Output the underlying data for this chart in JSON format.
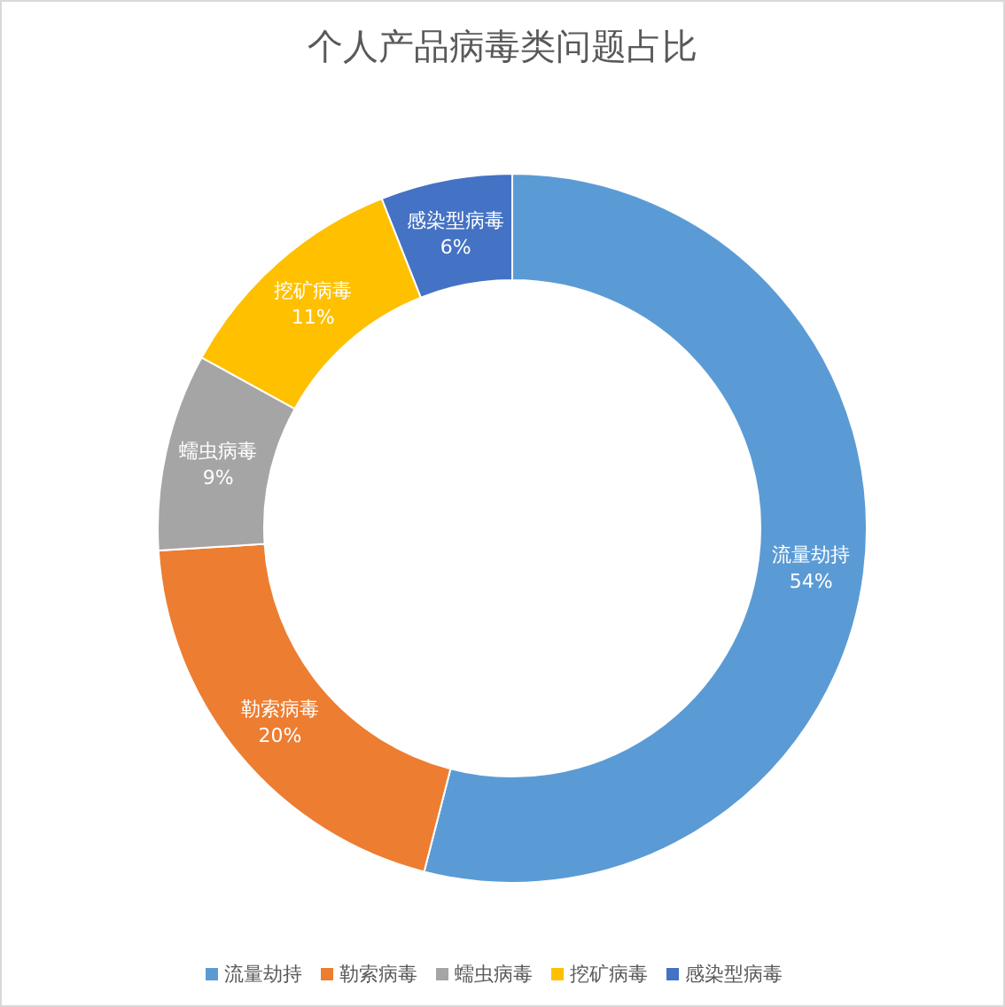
{
  "chart_data": {
    "type": "donut",
    "title": "个人产品病毒类问题占比",
    "categories": [
      "流量劫持",
      "勒索病毒",
      "蠕虫病毒",
      "挖矿病毒",
      "感染型病毒"
    ],
    "values": [
      54,
      20,
      9,
      11,
      6
    ],
    "value_labels": [
      "54%",
      "20%",
      "9%",
      "11%",
      "6%"
    ],
    "colors": [
      "#5b9bd5",
      "#ed7d31",
      "#a5a5a5",
      "#ffc000",
      "#4472c4"
    ],
    "legend": "bottom"
  }
}
